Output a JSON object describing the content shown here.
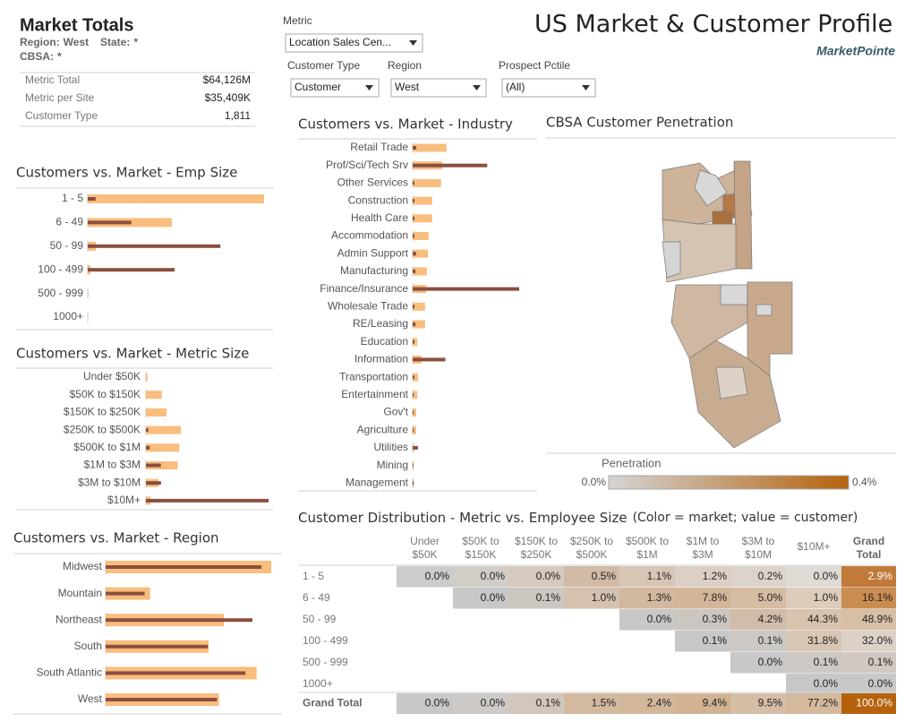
{
  "header": {
    "title": "Market Totals",
    "filters_summary": [
      {
        "label": "Region:",
        "value": "West"
      },
      {
        "label": "State:",
        "value": "*"
      },
      {
        "label": "CBSA:",
        "value": "*"
      }
    ]
  },
  "totals": {
    "rows": [
      [
        "Metric Total",
        "$64,126M"
      ],
      [
        "Metric per Site",
        "$35,409K"
      ],
      [
        "Customer Type",
        "1,811"
      ]
    ]
  },
  "dashboard": {
    "title": "US Market & Customer Profile",
    "brand": "MarketPointe"
  },
  "controls": [
    {
      "label": "Metric",
      "value": "Location Sales Cen..."
    },
    {
      "label": "Customer Type",
      "value": "Customer"
    },
    {
      "label": "Region",
      "value": "West"
    },
    {
      "label": "Prospect Pctile",
      "value": "(All)"
    }
  ],
  "chart_data": [
    {
      "type": "bar",
      "orientation": "horizontal",
      "title": "Customers vs. Market - Emp Size",
      "categories": [
        "1 - 5",
        "6 - 49",
        "50 - 99",
        "100 - 499",
        "500 - 999",
        "1000+"
      ],
      "series": [
        {
          "color": "#f9bd7e",
          "values": [
            65,
            31,
            3,
            1,
            0.1,
            0.05
          ]
        },
        {
          "color": "#8a4f3e",
          "values": [
            2.9,
            16.1,
            48.9,
            32.0,
            0.1,
            0.0
          ]
        }
      ]
    },
    {
      "type": "bar",
      "orientation": "horizontal",
      "title": "Customers vs. Market - Metric Size",
      "categories": [
        "Under $50K",
        "$50K to $150K",
        "$150K to $250K",
        "$250K to $500K",
        "$500K to $1M",
        "$1M to $3M",
        "$3M to $10M",
        "$10M+"
      ],
      "series": [
        {
          "color": "#f9bd7e",
          "values": [
            1,
            10,
            13,
            22,
            21,
            20,
            8,
            3
          ]
        },
        {
          "color": "#8a4f3e",
          "values": [
            0.0,
            0.0,
            0.1,
            1.5,
            2.4,
            9.4,
            9.5,
            77.2
          ]
        }
      ]
    },
    {
      "type": "bar",
      "orientation": "horizontal",
      "title": "Customers vs. Market - Industry",
      "categories": [
        "Retail Trade",
        "Prof/Sci/Tech Srv",
        "Other Services",
        "Construction",
        "Health Care",
        "Accommodation",
        "Admin Support",
        "Manufacturing",
        "Finance/Insurance",
        "Wholesale Trade",
        "RE/Leasing",
        "Education",
        "Information",
        "Transportation",
        "Entertainment",
        "Gov't",
        "Agriculture",
        "Utilities",
        "Mining",
        "Management"
      ],
      "series": [
        {
          "color": "#f9bd7e",
          "values": [
            9.5,
            8.3,
            8,
            5.5,
            5.5,
            4.5,
            4.3,
            4,
            3.8,
            3.5,
            3.5,
            1.3,
            2.5,
            1.5,
            1.3,
            1,
            1,
            0.3,
            0.3,
            0.3
          ]
        },
        {
          "color": "#8a4f3e",
          "values": [
            1,
            21,
            0.5,
            0.5,
            0.5,
            0.5,
            1,
            0.8,
            30,
            0.5,
            0.8,
            0.5,
            9.2,
            0.5,
            0.3,
            0.3,
            0.3,
            1.5,
            0.2,
            0.3
          ]
        }
      ]
    },
    {
      "type": "bar",
      "orientation": "horizontal",
      "title": "Customers vs. Market - Region",
      "categories": [
        "Midwest",
        "Mountain",
        "Northeast",
        "South",
        "South Atlantic",
        "West"
      ],
      "series": [
        {
          "color": "#f9bd7e",
          "values": [
            23.8,
            6.4,
            17.0,
            14.8,
            21.7,
            16.3
          ]
        },
        {
          "color": "#8a4f3e",
          "values": [
            22.4,
            5.6,
            21.1,
            14.7,
            20.1,
            16.0
          ]
        }
      ]
    }
  ],
  "map": {
    "title": "CBSA Customer Penetration",
    "legend": {
      "title": "Penetration",
      "min_label": "0.0%",
      "max_label": "0.4%",
      "colors": [
        "#d4d4d4",
        "#b5630d"
      ]
    }
  },
  "table": {
    "title": "Customer Distribution - Metric vs. Employee Size",
    "note": "(Color = market; value = customer)",
    "columns": [
      [
        "Under",
        "$50K"
      ],
      [
        "$50K to",
        "$150K"
      ],
      [
        "$150K to",
        "$250K"
      ],
      [
        "$250K to",
        "$500K"
      ],
      [
        "$500K to",
        "$1M"
      ],
      [
        "$1M to",
        "$3M"
      ],
      [
        "$3M to",
        "$10M"
      ],
      [
        "$10M+"
      ],
      [
        "Grand",
        "Total"
      ]
    ],
    "rows": [
      {
        "label": "1 - 5",
        "cells": [
          "0.0%",
          "0.0%",
          "0.0%",
          "0.5%",
          "1.1%",
          "1.2%",
          "0.2%",
          "0.0%",
          "2.9%"
        ],
        "shades": [
          "#cccccc",
          "#d3cdc8",
          "#d6c9bd",
          "#d2bba5",
          "#d8c6b5",
          "#dcd0c4",
          "#dcd4cc",
          "#e0dad4",
          "#c17a3a"
        ]
      },
      {
        "label": "6 - 49",
        "cells": [
          null,
          "0.0%",
          "0.1%",
          "1.0%",
          "1.3%",
          "7.8%",
          "5.0%",
          "1.0%",
          "16.1%"
        ],
        "shades": [
          null,
          "#c8c8c8",
          "#cdc7c2",
          "#d4c1ae",
          "#d2b89f",
          "#d3b699",
          "#d6bca3",
          "#dcccbc",
          "#c98c51"
        ]
      },
      {
        "label": "50 - 99",
        "cells": [
          null,
          null,
          null,
          null,
          "0.0%",
          "0.3%",
          "4.2%",
          "44.3%",
          "48.9%"
        ],
        "shades": [
          null,
          null,
          null,
          null,
          "#c8c8c8",
          "#ccc6c1",
          "#d0bca8",
          "#d8c3ae",
          "#d7bfa6"
        ]
      },
      {
        "label": "100 - 499",
        "cells": [
          null,
          null,
          null,
          null,
          null,
          "0.1%",
          "0.1%",
          "31.8%",
          "32.0%"
        ],
        "shades": [
          null,
          null,
          null,
          null,
          null,
          "#c8c8c8",
          "#ccc8c4",
          "#d8c6b4",
          "#dbd1c7"
        ]
      },
      {
        "label": "500 - 999",
        "cells": [
          null,
          null,
          null,
          null,
          null,
          null,
          "0.0%",
          "0.1%",
          "0.1%"
        ],
        "shades": [
          null,
          null,
          null,
          null,
          null,
          null,
          "#c8c8c8",
          "#ccc8c4",
          "#d0c8c1"
        ]
      },
      {
        "label": "1000+",
        "cells": [
          null,
          null,
          null,
          null,
          null,
          null,
          null,
          "0.0%",
          "0.0%"
        ],
        "shades": [
          null,
          null,
          null,
          null,
          null,
          null,
          null,
          "#c8c8c8",
          "#c8c8c8"
        ]
      },
      {
        "label": "Grand Total",
        "cells": [
          "0.0%",
          "0.0%",
          "0.1%",
          "1.5%",
          "2.4%",
          "9.4%",
          "9.5%",
          "77.2%",
          "100.0%"
        ],
        "shades": [
          "#c8c8c8",
          "#cdcac7",
          "#d2c7bc",
          "#d3b9a0",
          "#d3b79b",
          "#d1b394",
          "#d6bea6",
          "#d4b99d",
          "#b6620c"
        ]
      }
    ]
  }
}
